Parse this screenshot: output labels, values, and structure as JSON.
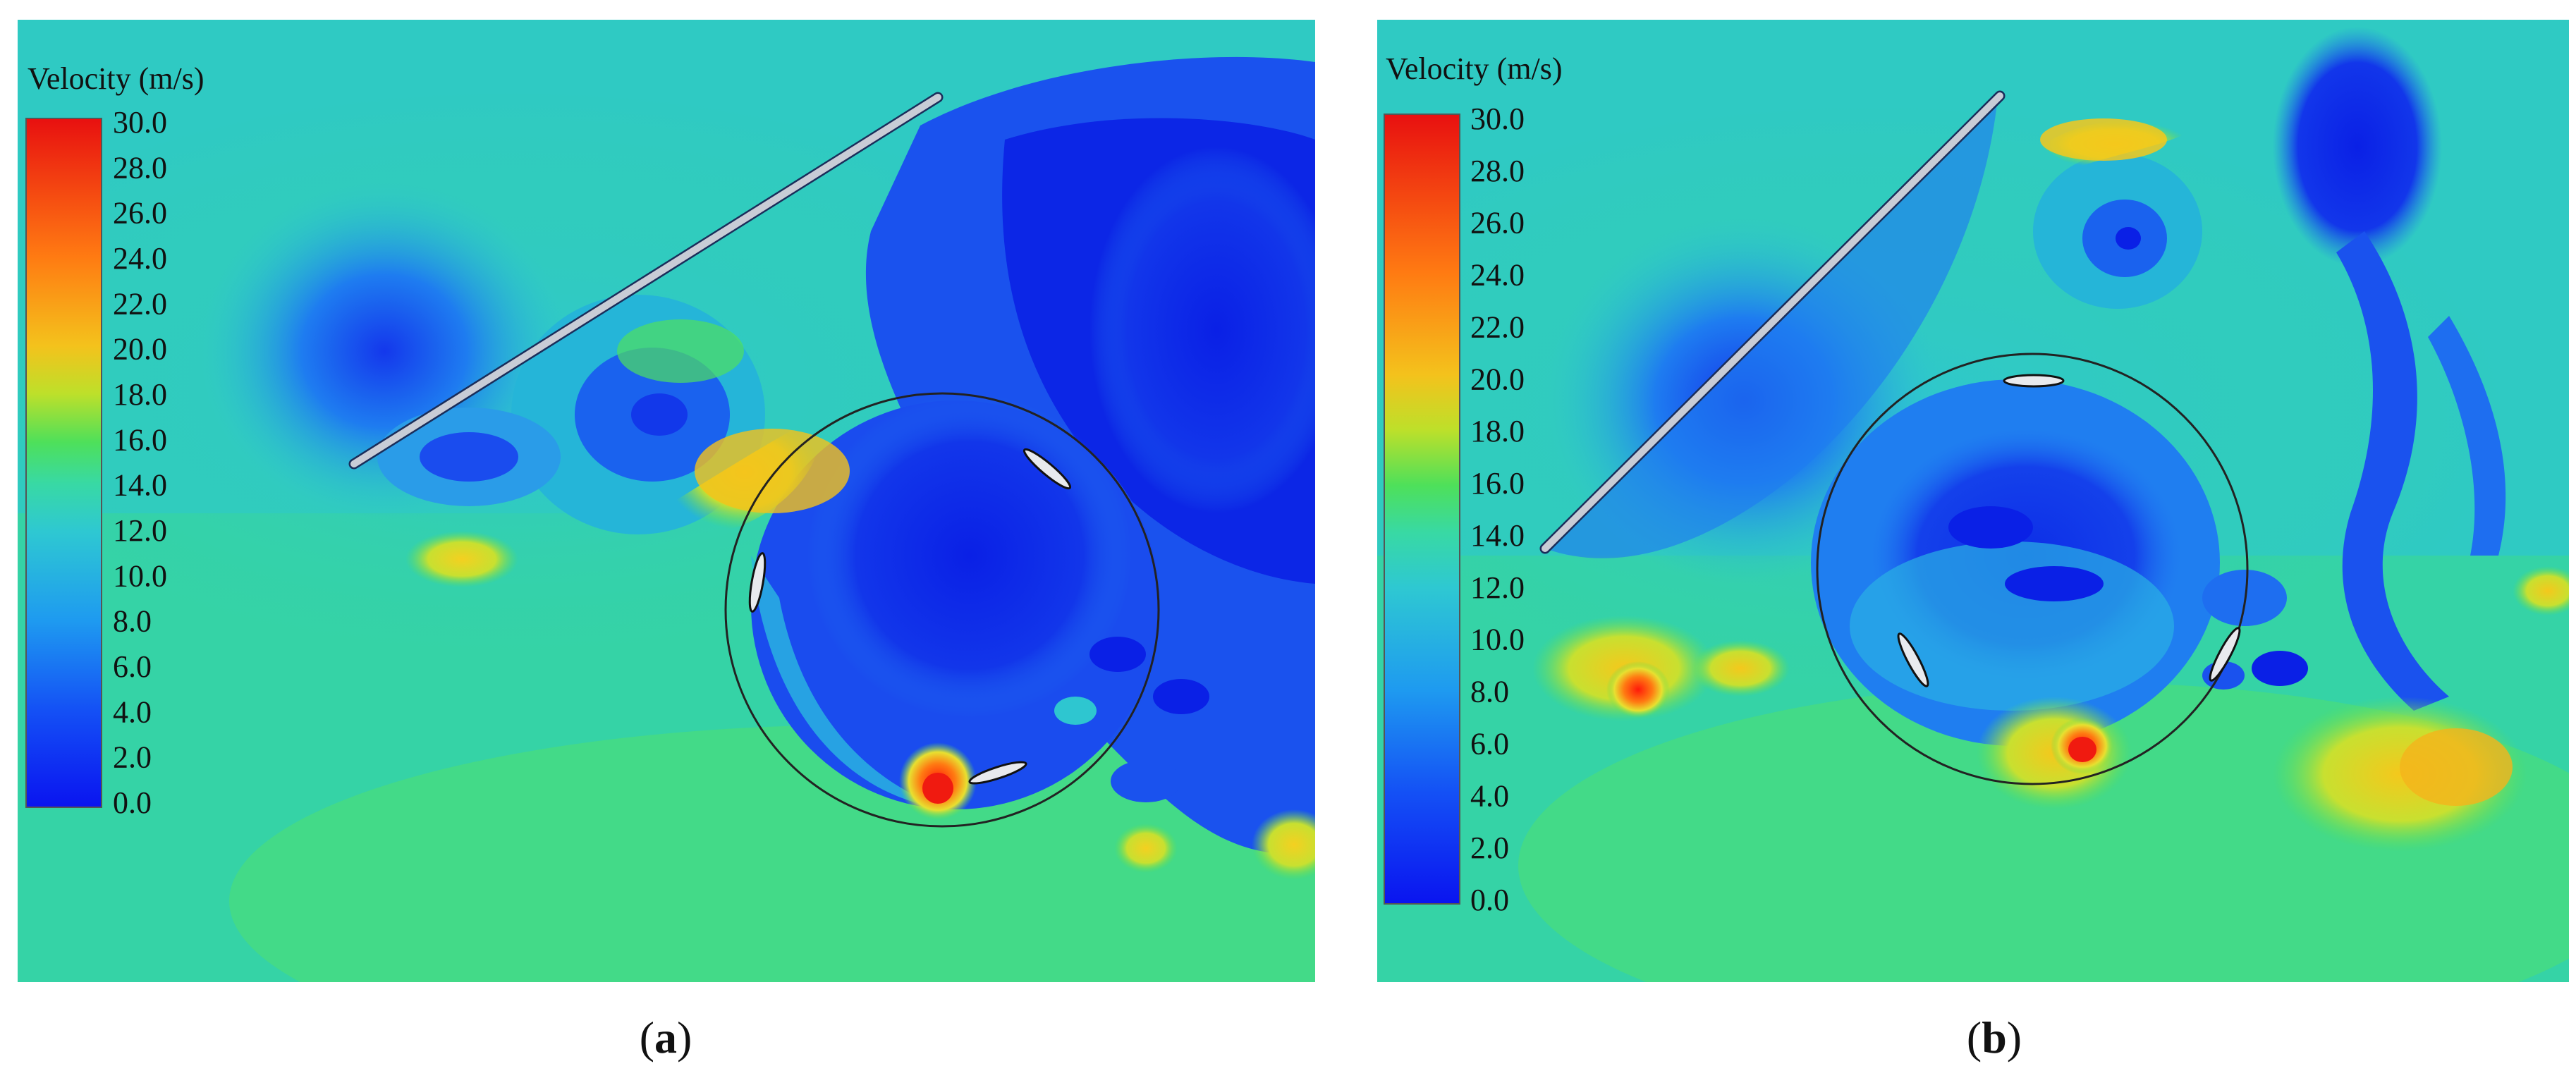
{
  "panels": [
    {
      "id": "a",
      "caption_open": "(",
      "caption_letter": "a",
      "caption_close": ")",
      "colorbar": {
        "title": "Velocity (m/s)",
        "min": 0.0,
        "max": 30.0,
        "ticks": [
          "30.0",
          "28.0",
          "26.0",
          "24.0",
          "22.0",
          "20.0",
          "18.0",
          "16.0",
          "14.0",
          "12.0",
          "10.0",
          "8.0",
          "6.0",
          "4.0",
          "2.0",
          "0.0"
        ]
      },
      "rotor": {
        "blades": 3,
        "deflector_plate": "flat-plate",
        "circle": "rotor-path"
      }
    },
    {
      "id": "b",
      "caption_open": "(",
      "caption_letter": "b",
      "caption_close": ")",
      "colorbar": {
        "title": "Velocity (m/s)",
        "min": 0.0,
        "max": 30.0,
        "ticks": [
          "30.0",
          "28.0",
          "26.0",
          "24.0",
          "22.0",
          "20.0",
          "18.0",
          "16.0",
          "14.0",
          "12.0",
          "10.0",
          "8.0",
          "6.0",
          "4.0",
          "2.0",
          "0.0"
        ]
      },
      "rotor": {
        "blades": 3,
        "deflector_plate": "flat-plate",
        "circle": "rotor-path"
      }
    }
  ],
  "colors": {
    "freestream": "#35d3a6",
    "background_cyan": "#2ec6d0",
    "low_velocity": "#1030e8",
    "mid_velocity": "#1f8ff0",
    "high_velocity": "#ff2a10",
    "yellow": "#e8e030",
    "orange": "#ff8c1a",
    "plate": "#c8ccd6"
  }
}
